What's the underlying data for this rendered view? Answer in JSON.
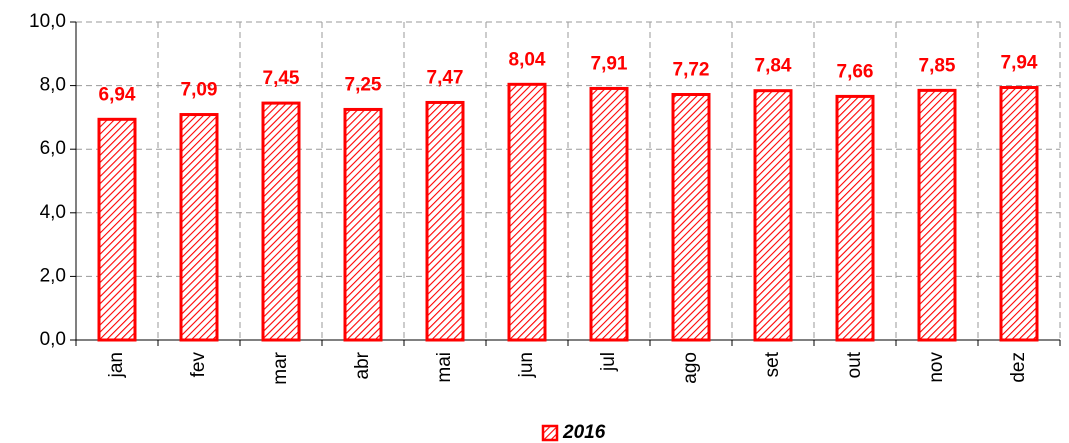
{
  "chart_data": {
    "type": "bar",
    "categories": [
      "jan",
      "fev",
      "mar",
      "abr",
      "mai",
      "jun",
      "jul",
      "ago",
      "set",
      "out",
      "nov",
      "dez"
    ],
    "series": [
      {
        "name": "2016",
        "color": "#ff0000",
        "values": [
          6.94,
          7.09,
          7.45,
          7.25,
          7.47,
          8.04,
          7.91,
          7.72,
          7.84,
          7.66,
          7.85,
          7.94
        ],
        "value_labels": [
          "6,94",
          "7,09",
          "7,45",
          "7,25",
          "7,47",
          "8,04",
          "7,91",
          "7,72",
          "7,84",
          "7,66",
          "7,85",
          "7,94"
        ]
      }
    ],
    "ylim": [
      0,
      10
    ],
    "yticks": [
      {
        "value": 0,
        "label": "0,0"
      },
      {
        "value": 2,
        "label": "2,0"
      },
      {
        "value": 4,
        "label": "4,0"
      },
      {
        "value": 6,
        "label": "6,0"
      },
      {
        "value": 8,
        "label": "8,0"
      },
      {
        "value": 10,
        "label": "10,0"
      }
    ],
    "grid": true,
    "legend": "bottom"
  }
}
